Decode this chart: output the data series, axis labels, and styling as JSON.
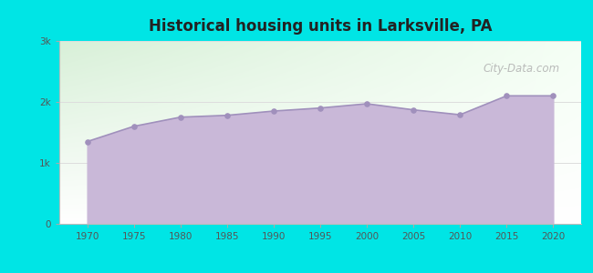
{
  "title": "Historical housing units in Larksville, PA",
  "years": [
    1970,
    1975,
    1980,
    1985,
    1990,
    1995,
    2000,
    2005,
    2010,
    2015,
    2020
  ],
  "values": [
    1350,
    1600,
    1750,
    1780,
    1850,
    1900,
    1970,
    1870,
    1790,
    2100,
    2100
  ],
  "bg_color": "#00e5e5",
  "plot_bg_top_left": "#d8f0d8",
  "plot_bg_top_right": "#f8fff8",
  "plot_bg_bottom": "#ffffff",
  "fill_color": "#c9b8d8",
  "line_color": "#a090bc",
  "dot_color": "#a090bc",
  "title_color": "#222222",
  "tick_color": "#555555",
  "grid_color": "#dddddd",
  "ylim": [
    0,
    3000
  ],
  "yticks": [
    0,
    1000,
    2000,
    3000
  ],
  "ytick_labels": [
    "0",
    "1k",
    "2k",
    "3k"
  ],
  "watermark": "City-Data.com",
  "xlim_left": 1967,
  "xlim_right": 2023
}
